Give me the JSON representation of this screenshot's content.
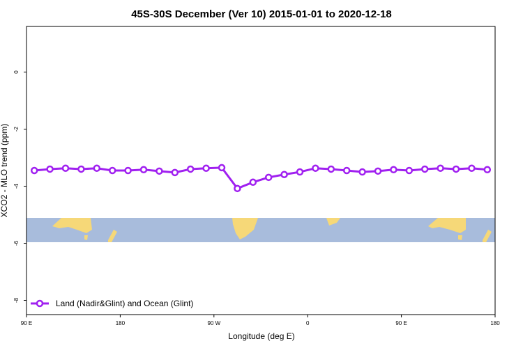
{
  "chart_data": {
    "type": "line",
    "title": "45S-30S December (Ver 10)   2015-01-01 to 2020-12-18",
    "xlabel": "Longitude (deg E)",
    "ylabel": "XCO2 - MLO trend (ppm)",
    "x": [
      97.5,
      112.5,
      127.5,
      142.5,
      157.5,
      172.5,
      187.5,
      202.5,
      217.5,
      232.5,
      247.5,
      262.5,
      277.5,
      292.5,
      307.5,
      322.5,
      337.5,
      352.5,
      367.5,
      382.5,
      397.5,
      412.5,
      427.5,
      442.5,
      457.5,
      472.5,
      487.5,
      502.5,
      517.5,
      532.5
    ],
    "series": [
      {
        "name": "Land (Nadir&Glint) and Ocean (Glint)",
        "color": "#a020f0",
        "values": [
          -3.45,
          -3.4,
          -3.37,
          -3.4,
          -3.37,
          -3.45,
          -3.45,
          -3.42,
          -3.47,
          -3.52,
          -3.4,
          -3.37,
          -3.35,
          -4.08,
          -3.86,
          -3.69,
          -3.59,
          -3.5,
          -3.37,
          -3.4,
          -3.45,
          -3.5,
          -3.47,
          -3.42,
          -3.45,
          -3.4,
          -3.37,
          -3.4,
          -3.37,
          -3.42
        ]
      }
    ],
    "xlim": [
      90,
      540
    ],
    "xticks": [
      {
        "value": 90,
        "label": "90 E"
      },
      {
        "value": 180,
        "label": "180"
      },
      {
        "value": 270,
        "label": "90 W"
      },
      {
        "value": 360,
        "label": "0"
      },
      {
        "value": 450,
        "label": "90 E"
      },
      {
        "value": 540,
        "label": "180"
      }
    ],
    "ylim": [
      -8.5,
      1.6
    ],
    "yticks": [
      0,
      -2,
      -4,
      -6,
      -8
    ],
    "legend": "bottomleft"
  }
}
